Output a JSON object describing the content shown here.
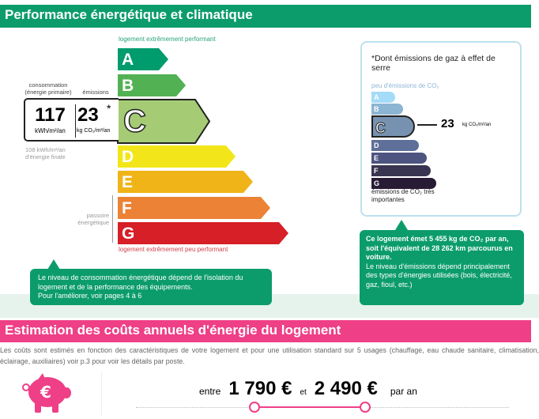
{
  "header": {
    "title": "Performance énergétique et climatique"
  },
  "energy": {
    "top_label": "logement extrêmement performant",
    "bottom_label": "logement extrêmement peu performant",
    "classes": [
      {
        "letter": "A",
        "color": "#009c6d"
      },
      {
        "letter": "B",
        "color": "#52b153"
      },
      {
        "letter": "C",
        "color": "#a5cc74"
      },
      {
        "letter": "D",
        "color": "#f2e61a"
      },
      {
        "letter": "E",
        "color": "#f0b418"
      },
      {
        "letter": "F",
        "color": "#eb8235"
      },
      {
        "letter": "G",
        "color": "#d61f26"
      }
    ],
    "current_class": "C",
    "consumption_label": "consommation (énergie primaire)",
    "emissions_label": "émissions",
    "consumption_value": "117",
    "consumption_unit": "kWh/m²/an",
    "emissions_value": "23",
    "emissions_star": "*",
    "emissions_unit": "kg CO₂/m²/an",
    "final_energy": "108 kWh/m²/an d'énergie finale",
    "passoire": "passoire énergétique",
    "callout": [
      "Le niveau de consommation énergétique dépend de l'isolation du",
      "logement et de la performance des équipements.",
      "Pour l'améliorer, voir pages 4 à 6"
    ]
  },
  "ges": {
    "title": "*Dont émissions de gaz à effet de serre",
    "top_label": "peu d'émissions de CO₂",
    "bottom_label": "émissions de CO₂ très importantes",
    "classes": [
      {
        "letter": "A",
        "color": "#a4dbf8"
      },
      {
        "letter": "B",
        "color": "#8cb4d3"
      },
      {
        "letter": "C",
        "color": "#7792b1"
      },
      {
        "letter": "D",
        "color": "#5e6f9a"
      },
      {
        "letter": "E",
        "color": "#4d5480"
      },
      {
        "letter": "F",
        "color": "#393550"
      },
      {
        "letter": "G",
        "color": "#281b35"
      }
    ],
    "value": "23",
    "unit": "kg CO₂/m²/an",
    "callout_bold": "Ce logement émet 5 455 kg de CO₂ par an, soit l'équivalent de 28 262 km parcourus en voiture.",
    "callout_text": "Le niveau d'émissions dépend principalement des types d'énergies utilisées (bois, électricité, gaz, fioul, etc.)"
  },
  "costs": {
    "title": "Estimation des coûts annuels d'énergie du logement",
    "description": "Les coûts sont estimés en fonction des caractéristiques de votre logement et pour une utilisation standard sur 5 usages (chauffage, eau chaude sanitaire, climatisation, éclairage, auxiliaires) voir p.3 pour voir les détails par poste.",
    "between": "entre",
    "min": "1 790 €",
    "and": "et",
    "max": "2 490 €",
    "per_year": "par an",
    "icon": "piggy-bank-euro-icon",
    "accent": "#ee3f87"
  }
}
